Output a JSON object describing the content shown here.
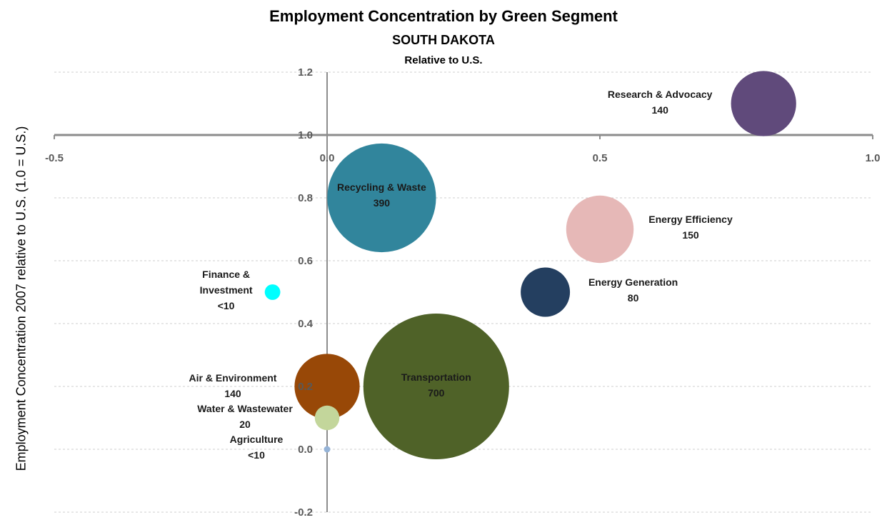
{
  "chart_data": {
    "type": "bubble",
    "title": "Employment Concentration  by Green Segment",
    "subtitle": "SOUTH DAKOTA",
    "subtitle2": "Relative to U.S.",
    "xlabel": "",
    "ylabel": "Employment Concentration 2007 relative to U.S. (1.0 = U.S.)",
    "xlim": [
      -0.5,
      1.0
    ],
    "ylim": [
      -0.2,
      1.2
    ],
    "x_axis_crosses_at": 1.0,
    "xticks": [
      "-0.5",
      "0.0",
      "0.5",
      "1.0"
    ],
    "yticks": [
      "1.2",
      "1.0",
      "0.8",
      "0.6",
      "0.4",
      "0.2",
      "0.0",
      "-0.2"
    ],
    "grid": "horizontal dashed",
    "points": [
      {
        "label": "Research & Advocacy",
        "size_label": "140",
        "x": 0.8,
        "y": 1.1,
        "size": 140,
        "color": "#604a7b"
      },
      {
        "label": "Recycling  & Waste",
        "size_label": "390",
        "x": 0.1,
        "y": 0.8,
        "size": 390,
        "color": "#31859c"
      },
      {
        "label": "Energy Efficiency",
        "size_label": "150",
        "x": 0.5,
        "y": 0.7,
        "size": 150,
        "color": "#e6b8b7"
      },
      {
        "label": "Energy Generation",
        "size_label": "80",
        "x": 0.4,
        "y": 0.5,
        "size": 80,
        "color": "#243f60"
      },
      {
        "label": "Finance &",
        "label2": "Investment",
        "size_label": "<10",
        "x": -0.1,
        "y": 0.5,
        "size": 8,
        "color": "#00ffff"
      },
      {
        "label": "Transportation",
        "size_label": "700",
        "x": 0.2,
        "y": 0.2,
        "size": 700,
        "color": "#4f6228"
      },
      {
        "label": "Air & Environment",
        "size_label": "140",
        "x": 0.0,
        "y": 0.2,
        "size": 140,
        "color": "#984807"
      },
      {
        "label": "Water & Wastewater",
        "size_label": "20",
        "x": 0.0,
        "y": 0.1,
        "size": 20,
        "color": "#c3d69b"
      },
      {
        "label": "Agriculture",
        "size_label": "<10",
        "x": 0.0,
        "y": 0.0,
        "size": 1,
        "color": "#95b3d7"
      }
    ]
  }
}
